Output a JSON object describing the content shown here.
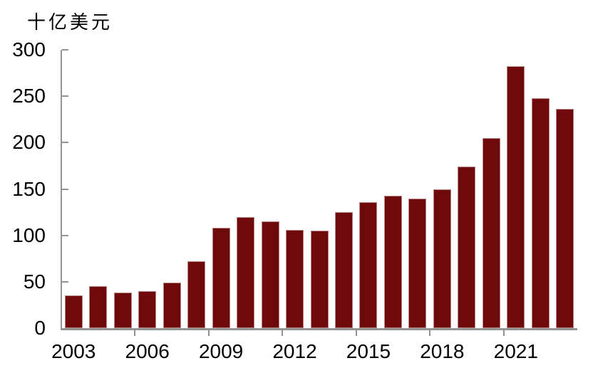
{
  "chart_data": {
    "type": "bar",
    "title": "",
    "unit_label": "十亿美元",
    "categories": [
      "2003",
      "2004",
      "2005",
      "2006",
      "2007",
      "2008",
      "2009",
      "2010",
      "2011",
      "2012",
      "2013",
      "2014",
      "2015",
      "2016",
      "2017",
      "2018",
      "2019",
      "2020",
      "2021",
      "2022",
      "2023"
    ],
    "values": [
      35,
      45,
      38,
      40,
      49,
      72,
      108,
      120,
      115,
      106,
      105,
      125,
      136,
      143,
      140,
      150,
      174,
      205,
      282,
      248,
      236
    ],
    "xlabel": "",
    "ylabel": "十亿美元",
    "ylim": [
      0,
      300
    ],
    "yticks": [
      0,
      50,
      100,
      150,
      200,
      250,
      300
    ],
    "xtick_labels": [
      "2003",
      "2006",
      "2009",
      "2012",
      "2015",
      "2018",
      "2021"
    ],
    "xtick_label_step": 3,
    "grid": false,
    "legend": "none",
    "bar_color": "#6e0a0c",
    "axis_color": "#949494",
    "label_color": "#000000",
    "background_color": "#ffffff"
  }
}
